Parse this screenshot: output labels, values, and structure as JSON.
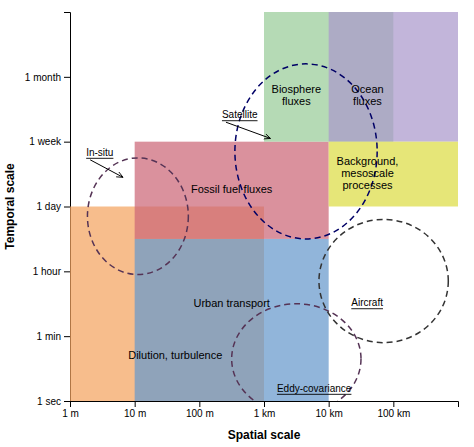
{
  "chart_data": {
    "type": "region",
    "xlabel": "Spatial scale",
    "ylabel": "Temporal scale",
    "xlim": [
      0,
      6
    ],
    "ylim": [
      0,
      6
    ],
    "xticks": [
      {
        "value": 0,
        "label": "1 m"
      },
      {
        "value": 1,
        "label": "10 m"
      },
      {
        "value": 2,
        "label": "100 m"
      },
      {
        "value": 3,
        "label": "1 km"
      },
      {
        "value": 4,
        "label": "10 km"
      },
      {
        "value": 5,
        "label": "100 km"
      }
    ],
    "yticks": [
      {
        "value": 0,
        "label": "1 sec"
      },
      {
        "value": 1,
        "label": "1 min"
      },
      {
        "value": 2,
        "label": "1 hour"
      },
      {
        "value": 3,
        "label": "1 day"
      },
      {
        "value": 4,
        "label": "1 week"
      },
      {
        "value": 5,
        "label": "1 month"
      }
    ],
    "grid": false,
    "rectangles": [
      {
        "name": "Dilution, turbulence",
        "x": 0,
        "y": 0,
        "w": 3,
        "h": 3,
        "color": "#F4A460",
        "label_x": 0.9,
        "label_y": 0.7,
        "align": "left"
      },
      {
        "name": "Urban transport",
        "x": 1,
        "y": 0,
        "w": 3,
        "h": 2.5,
        "color": "#6699CC",
        "label_x": 2.5,
        "label_y": 1.5,
        "align": "center"
      },
      {
        "name": "Fossil fuel fluxes",
        "x": 1,
        "y": 2.5,
        "w": 3,
        "h": 1.5,
        "color": "#CC6677",
        "label_x": 2.5,
        "label_y": 3.25,
        "align": "center"
      },
      {
        "name": "Biosphere\nfluxes",
        "x": 3,
        "y": 4,
        "w": 2,
        "h": 2,
        "color": "#99CC99",
        "label_x": 3.5,
        "label_y": 4.7,
        "align": "center"
      },
      {
        "name": "Ocean\nfluxes",
        "x": 4,
        "y": 4,
        "w": 2,
        "h": 2,
        "color": "#AA99CC",
        "label_x": 4.6,
        "label_y": 4.7,
        "align": "center"
      },
      {
        "name": "Background,\nmesoscale\nprocesses",
        "x": 4,
        "y": 3,
        "w": 2,
        "h": 1,
        "color": "#DDDD44",
        "label_x": 4.6,
        "label_y": 3.5,
        "align": "center"
      }
    ],
    "ellipses": [
      {
        "name": "In-situ",
        "cx": 1.05,
        "cy": 2.85,
        "rx": 0.78,
        "ry": 0.9,
        "color": "#553355",
        "label_x": 0.25,
        "label_y": 3.72,
        "arrow_end_x": 0.82,
        "arrow_end_y": 3.45
      },
      {
        "name": "Eddy-covariance",
        "cx": 3.5,
        "cy": 0.65,
        "rx": 1.0,
        "ry": 0.85,
        "color": "#553355",
        "label_x": 3.2,
        "label_y": 0.08,
        "arrow_end_x": null,
        "arrow_end_y": null
      },
      {
        "name": "Satellite",
        "cx": 3.65,
        "cy": 3.85,
        "rx": 1.1,
        "ry": 1.35,
        "color": "#000066",
        "label_x": 2.35,
        "label_y": 4.3,
        "arrow_end_x": 3.1,
        "arrow_end_y": 4.05
      },
      {
        "name": "Aircraft",
        "cx": 4.85,
        "cy": 1.85,
        "rx": 1.0,
        "ry": 0.95,
        "color": "#333333",
        "label_x": 4.35,
        "label_y": 1.4,
        "arrow_end_x": null,
        "arrow_end_y": null
      }
    ]
  }
}
